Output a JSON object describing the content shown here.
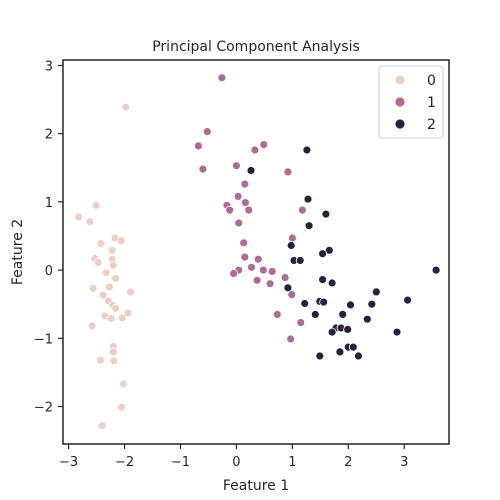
{
  "chart_data": {
    "type": "scatter",
    "title": "Principal Component Analysis",
    "xlabel": "Feature 1",
    "ylabel": "Feature 2",
    "xlim": [
      -3.1,
      3.8
    ],
    "ylim": [
      -2.55,
      3.08
    ],
    "xticks": [
      -3,
      -2,
      -1,
      0,
      1,
      2,
      3
    ],
    "yticks": [
      -2,
      -1,
      0,
      1,
      2,
      3
    ],
    "xtick_labels": [
      "−3",
      "−2",
      "−1",
      "0",
      "1",
      "2",
      "3"
    ],
    "ytick_labels": [
      "−2",
      "−1",
      "0",
      "1",
      "2",
      "3"
    ],
    "grid": false,
    "legend_position": "top-right",
    "series": [
      {
        "name": "0",
        "color": "#ecd0c6",
        "points": [
          [
            -1.98,
            2.39
          ],
          [
            -2.51,
            0.95
          ],
          [
            -2.82,
            0.78
          ],
          [
            -2.62,
            0.71
          ],
          [
            -2.42,
            0.39
          ],
          [
            -2.17,
            0.47
          ],
          [
            -2.06,
            0.43
          ],
          [
            -2.22,
            0.29
          ],
          [
            -2.53,
            0.17
          ],
          [
            -2.47,
            0.11
          ],
          [
            -2.22,
            0.16
          ],
          [
            -2.2,
            0.07
          ],
          [
            -2.33,
            -0.04
          ],
          [
            -2.16,
            -0.12
          ],
          [
            -2.56,
            -0.27
          ],
          [
            -2.27,
            -0.25
          ],
          [
            -1.89,
            -0.32
          ],
          [
            -2.38,
            -0.37
          ],
          [
            -2.29,
            -0.45
          ],
          [
            -2.21,
            -0.52
          ],
          [
            -2.16,
            -0.56
          ],
          [
            -1.94,
            -0.63
          ],
          [
            -2.35,
            -0.67
          ],
          [
            -2.24,
            -0.71
          ],
          [
            -2.04,
            -0.7
          ],
          [
            -2.58,
            -0.82
          ],
          [
            -2.2,
            -1.12
          ],
          [
            -2.2,
            -1.2
          ],
          [
            -2.43,
            -1.32
          ],
          [
            -2.19,
            -1.33
          ],
          [
            -2.02,
            -1.67
          ],
          [
            -2.05,
            -2.01
          ],
          [
            -2.4,
            -2.28
          ]
        ]
      },
      {
        "name": "1",
        "color": "#ae6b97",
        "points": [
          [
            -0.26,
            2.82
          ],
          [
            -0.52,
            2.03
          ],
          [
            -0.68,
            1.82
          ],
          [
            0.33,
            1.76
          ],
          [
            0.49,
            1.84
          ],
          [
            -0.6,
            1.48
          ],
          [
            0.0,
            1.53
          ],
          [
            0.15,
            1.26
          ],
          [
            0.92,
            1.44
          ],
          [
            0.03,
            1.08
          ],
          [
            0.16,
            0.99
          ],
          [
            -0.17,
            0.95
          ],
          [
            -0.12,
            0.88
          ],
          [
            0.22,
            0.88
          ],
          [
            1.18,
            0.88
          ],
          [
            0.04,
            0.69
          ],
          [
            1.0,
            0.47
          ],
          [
            0.13,
            0.4
          ],
          [
            0.15,
            0.19
          ],
          [
            0.39,
            0.16
          ],
          [
            0.04,
            0.0
          ],
          [
            0.27,
            0.04
          ],
          [
            0.48,
            0.0
          ],
          [
            0.64,
            -0.02
          ],
          [
            -0.05,
            -0.05
          ],
          [
            0.37,
            -0.15
          ],
          [
            0.6,
            -0.2
          ],
          [
            0.87,
            -0.11
          ],
          [
            0.99,
            -0.36
          ],
          [
            0.73,
            -0.65
          ],
          [
            1.15,
            -0.77
          ],
          [
            0.97,
            -1.01
          ]
        ]
      },
      {
        "name": "2",
        "color": "#2d1e3e",
        "points": [
          [
            1.26,
            1.76
          ],
          [
            0.26,
            1.46
          ],
          [
            1.28,
            1.04
          ],
          [
            1.6,
            0.82
          ],
          [
            1.3,
            0.65
          ],
          [
            0.98,
            0.36
          ],
          [
            1.66,
            0.29
          ],
          [
            1.03,
            0.14
          ],
          [
            1.14,
            0.14
          ],
          [
            1.54,
            0.24
          ],
          [
            3.57,
            0.0
          ],
          [
            1.54,
            -0.14
          ],
          [
            0.92,
            -0.26
          ],
          [
            1.71,
            -0.19
          ],
          [
            2.5,
            -0.32
          ],
          [
            1.22,
            -0.49
          ],
          [
            1.49,
            -0.46
          ],
          [
            2.04,
            -0.51
          ],
          [
            2.42,
            -0.5
          ],
          [
            1.56,
            -0.47
          ],
          [
            3.06,
            -0.44
          ],
          [
            1.41,
            -0.65
          ],
          [
            1.9,
            -0.65
          ],
          [
            2.34,
            -0.72
          ],
          [
            1.78,
            -0.85
          ],
          [
            1.87,
            -0.85
          ],
          [
            1.99,
            -0.87
          ],
          [
            1.71,
            -0.91
          ],
          [
            2.87,
            -0.91
          ],
          [
            2.0,
            -1.13
          ],
          [
            2.09,
            -1.13
          ],
          [
            1.85,
            -1.2
          ],
          [
            1.49,
            -1.26
          ],
          [
            2.18,
            -1.26
          ]
        ]
      }
    ]
  }
}
